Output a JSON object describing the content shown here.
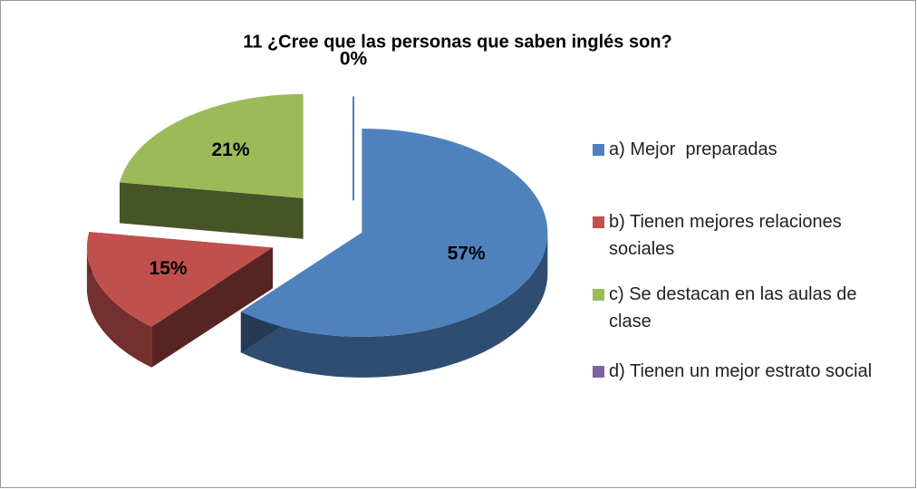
{
  "chart_data": {
    "type": "pie",
    "title": "11 ¿Cree que las personas que saben inglés son?",
    "categories": [
      "a) Mejor  preparadas",
      "b) Tienen mejores relaciones sociales",
      "c) Se destacan en las aulas de clase",
      "d) Tienen un mejor estrato social"
    ],
    "values": [
      57,
      15,
      21,
      0
    ],
    "value_labels": [
      "57%",
      "15%",
      "21%",
      "0%"
    ],
    "colors": [
      "#4f81bd",
      "#c0504d",
      "#9bbb59",
      "#8064a2"
    ],
    "legend": "right"
  }
}
